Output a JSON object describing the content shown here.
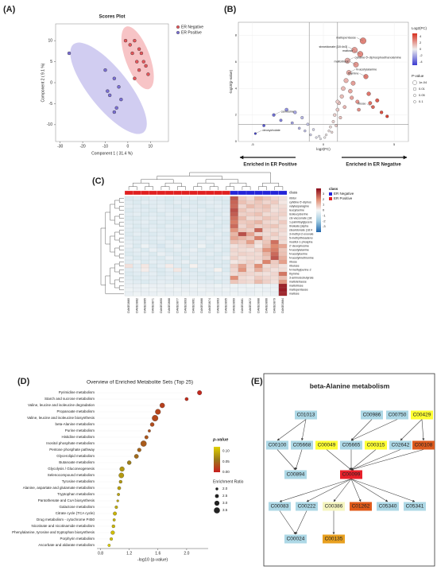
{
  "panel_labels": [
    "(A)",
    "(B)",
    "(C)",
    "(D)",
    "(E)"
  ],
  "chart_data": [
    {
      "type": "scatter",
      "title": "Scores Plot",
      "x_label": "Component 1 ( 31.4 %)",
      "y_label": "Component 2 ( 9.1 %)",
      "xlim": [
        -32,
        18
      ],
      "ylim": [
        -14,
        14
      ],
      "xticks": [
        -30,
        -20,
        -10,
        0,
        10
      ],
      "yticks": [
        -10,
        -5,
        0,
        5,
        10
      ],
      "series": [
        {
          "name": "ER Negative",
          "color": "#e8565b",
          "x": [
            -1,
            1,
            3,
            5,
            2,
            6,
            4,
            7,
            8,
            5,
            9,
            3
          ],
          "y": [
            10,
            9,
            10,
            8,
            7,
            7,
            5,
            5,
            4,
            3,
            2,
            1
          ]
        },
        {
          "name": "ER Positive",
          "color": "#7b6fd6",
          "x": [
            -26,
            -10,
            -6,
            -4,
            -8,
            -3,
            -5,
            -9,
            -6
          ],
          "y": [
            7,
            3,
            1,
            -1,
            -3,
            -4,
            -6,
            -2,
            -7
          ]
        }
      ]
    },
    {
      "type": "volcano",
      "x_label": "log2(FC)",
      "y_label": "-log10(p-value)",
      "xlim": [
        -6,
        6
      ],
      "ylim": [
        0,
        9
      ],
      "xticks": [
        -5,
        0,
        5
      ],
      "yticks": [
        0,
        2,
        4,
        6,
        8
      ],
      "cutoff_x": [
        -1,
        1
      ],
      "cutoff_y": 1.3,
      "x": [
        -4.8,
        -4.2,
        -3.5,
        -3.0,
        -2.6,
        -2.2,
        -2.0,
        -1.7,
        -1.5,
        -1.3,
        -1.1,
        -0.9,
        -0.7,
        -0.5,
        -0.3,
        -0.2,
        0.1,
        0.2,
        0.4,
        0.5,
        0.7,
        0.8,
        1.0,
        1.1,
        1.3,
        1.4,
        1.6,
        1.8,
        1.9,
        2.1,
        2.3,
        2.4,
        2.6,
        2.8,
        3.0,
        3.2,
        3.5,
        3.8,
        4.1,
        4.5,
        1.2,
        1.5,
        2.0,
        0.9,
        1.7,
        2.5,
        3.3,
        0.6,
        1.0,
        2.2
      ],
      "y": [
        0.6,
        1.2,
        2.0,
        1.6,
        2.4,
        1.4,
        2.2,
        1.0,
        1.8,
        0.8,
        1.3,
        0.5,
        0.9,
        0.3,
        0.4,
        0.2,
        0.3,
        0.5,
        0.8,
        1.1,
        1.5,
        2.0,
        2.4,
        2.9,
        3.4,
        4.0,
        4.6,
        5.2,
        3.8,
        4.4,
        5.8,
        3.0,
        6.6,
        7.6,
        4.9,
        3.6,
        2.6,
        3.1,
        2.2,
        1.9,
        1.8,
        2.6,
        3.3,
        1.2,
        6.1,
        2.4,
        2.9,
        0.7,
        3.0,
        6.9
      ],
      "annotations": [
        {
          "text": "maltopentaose",
          "x": 2.8,
          "y": 7.6
        },
        {
          "text": "stearidonate [18:4n3]",
          "x": 2.2,
          "y": 6.9
        },
        {
          "text": "maltose",
          "x": 2.6,
          "y": 6.6
        },
        {
          "text": "cytidine-5'-diphosphoethanolamine",
          "x": 1.7,
          "y": 6.1
        },
        {
          "text": "maltotriose",
          "x": 2.3,
          "y": 5.8
        },
        {
          "text": "N-acetylalanine",
          "x": 1.8,
          "y": 5.2
        },
        {
          "text": "thymine",
          "x": 3.0,
          "y": 4.9
        },
        {
          "text": "ribose",
          "x": 3.5,
          "y": 2.6
        },
        {
          "text": "carnosine",
          "x": -3.5,
          "y": 2.0
        },
        {
          "text": "deoxycholate",
          "x": -4.8,
          "y": 0.6
        }
      ],
      "color_label": "Log2(FC)",
      "color_lim": [
        -5,
        5
      ],
      "color_ticks": [
        4,
        2,
        0,
        -2,
        -4
      ],
      "colormap": [
        "#3b3bd1",
        "#eeeeee",
        "#d7301f"
      ],
      "size_label": "P-value",
      "size_ticks": [
        {
          "value": 0.0001,
          "label": "1e-04"
        },
        0.01,
        0.05,
        0.1
      ],
      "arrow_left": "Enriched in ER Positive",
      "arrow_right": "Enriched in ER Negative"
    },
    {
      "type": "heatmap",
      "rows": [
        "ribitol",
        "cytidine-5'-diphos",
        "valylasparagine",
        "leucylserine",
        "isoleucylserine",
        "cis-vaccenate (18:",
        "1-palmitoylglycero",
        "linoleate [alpha",
        "stearidonate (18:4",
        "3-methyl-2-oxovale",
        "5-methylthioadeno",
        "inositol-1-phospha",
        "2'-deoxyinosine",
        "N-acetylalanine",
        "N-acetylserine",
        "N-acetylmethionine",
        "ribose",
        "ribulose",
        "N-methylpurine-2",
        "thymine",
        "3-aminoisobutyrate",
        "maltotetraose",
        "maltotriose",
        "maltopentaose",
        "maltose"
      ],
      "columns": [
        "DAKE0880",
        "DAKE0882",
        "DAKE0865",
        "DAKE0871",
        "DAKE0890",
        "DAKE0868",
        "DAKE0877",
        "DAKE0893",
        "DAKE0861",
        "DAKE0886",
        "DAKE0874",
        "DAKE0863",
        "DAKE0895",
        "DAKE0869",
        "DAKE0881",
        "DAKE0872",
        "DAKE0888",
        "DAKE0866",
        "DAKE0879",
        "DAKE0884"
      ],
      "classes": [
        "ER Positive",
        "ER Positive",
        "ER Positive",
        "ER Positive",
        "ER Positive",
        "ER Positive",
        "ER Positive",
        "ER Positive",
        "ER Positive",
        "ER Positive",
        "ER Positive",
        "ER Positive",
        "ER Positive",
        "ER Negative",
        "ER Negative",
        "ER Negative",
        "ER Negative",
        "ER Negative",
        "ER Negative",
        "ER Negative"
      ],
      "class_label": "class",
      "class_legend": [
        {
          "name": "ER Negative",
          "color": "#2424d8"
        },
        {
          "name": "ER Positive",
          "color": "#e02020"
        }
      ],
      "color_lim": [
        -4,
        4
      ],
      "color_ticks": [
        3,
        2,
        1,
        0,
        -1,
        -2,
        -3
      ],
      "colormap": [
        "#2166ac",
        "#9ecae1",
        "#f7f7f7",
        "#e08a70",
        "#8b0a1a"
      ],
      "values": [
        [
          -0.6,
          -0.5,
          -0.6,
          -0.4,
          -0.5,
          -0.6,
          -0.5,
          -0.5,
          -0.4,
          -0.6,
          -0.5,
          -0.6,
          -0.5,
          2.8,
          0.8,
          0.5,
          1.2,
          0.9,
          0.6,
          0.4
        ],
        [
          -0.5,
          -0.6,
          -0.4,
          -0.5,
          -0.5,
          -0.6,
          -0.4,
          -0.5,
          -0.6,
          -0.5,
          -0.4,
          -0.5,
          -0.6,
          2.6,
          1.0,
          0.7,
          0.9,
          0.6,
          0.8,
          0.3
        ],
        [
          -0.4,
          -0.5,
          -0.6,
          -0.5,
          -0.4,
          -0.5,
          -0.6,
          -0.4,
          -0.5,
          -0.6,
          -0.5,
          -0.4,
          -0.5,
          2.5,
          0.6,
          1.1,
          0.8,
          1.0,
          0.5,
          0.5
        ],
        [
          -0.6,
          -0.5,
          -0.5,
          -0.6,
          -0.4,
          -0.5,
          -0.5,
          -0.6,
          -0.5,
          -0.4,
          -0.6,
          -0.5,
          -0.5,
          2.9,
          0.9,
          0.6,
          0.7,
          0.8,
          0.4,
          0.6
        ],
        [
          -0.5,
          -0.4,
          -0.6,
          -0.5,
          -0.6,
          -0.4,
          -0.5,
          -0.5,
          -0.6,
          -0.5,
          -0.5,
          -0.6,
          -0.4,
          2.7,
          0.7,
          0.8,
          1.0,
          0.5,
          0.6,
          0.7
        ],
        [
          -0.6,
          -0.6,
          -0.5,
          -0.4,
          -0.5,
          -0.5,
          -0.6,
          -0.4,
          -0.5,
          -0.5,
          -0.6,
          -0.4,
          -0.5,
          2.4,
          1.1,
          0.5,
          0.6,
          0.9,
          0.7,
          0.4
        ],
        [
          -0.5,
          -0.5,
          -0.4,
          -0.6,
          -0.5,
          -0.6,
          -0.5,
          -0.5,
          -0.4,
          -0.6,
          -0.5,
          -0.5,
          -0.6,
          2.2,
          0.8,
          0.9,
          1.2,
          0.6,
          0.5,
          0.8
        ],
        [
          -0.4,
          -0.6,
          -0.5,
          -0.5,
          -0.6,
          -0.4,
          -0.5,
          -0.6,
          -0.5,
          -0.5,
          -0.4,
          -0.6,
          -0.5,
          2.5,
          0.6,
          1.0,
          0.7,
          0.8,
          0.9,
          0.5
        ],
        [
          -0.5,
          -0.5,
          -0.6,
          -0.4,
          -0.5,
          -0.5,
          -0.6,
          -0.5,
          -0.4,
          -0.5,
          -0.6,
          -0.5,
          -0.4,
          1.8,
          0.9,
          0.7,
          2.6,
          0.6,
          0.5,
          0.6
        ],
        [
          -0.6,
          -0.4,
          -0.5,
          -0.6,
          -0.5,
          -0.5,
          -0.4,
          -0.5,
          -0.6,
          -0.5,
          -0.5,
          -0.4,
          -0.6,
          1.2,
          2.9,
          1.5,
          0.6,
          0.5,
          0.8,
          0.4
        ],
        [
          -0.5,
          -0.6,
          -0.5,
          -0.5,
          -0.4,
          -0.6,
          -0.5,
          -0.5,
          -0.5,
          -0.6,
          -0.4,
          -0.5,
          -0.5,
          1.5,
          1.2,
          0.9,
          2.2,
          0.7,
          0.5,
          0.6
        ],
        [
          -0.4,
          -0.5,
          -0.5,
          -0.6,
          -0.5,
          -0.4,
          -0.6,
          -0.5,
          -0.5,
          -0.4,
          -0.5,
          -0.6,
          -0.5,
          1.0,
          0.8,
          1.6,
          0.5,
          0.9,
          2.4,
          0.5
        ],
        [
          -0.3,
          -0.6,
          -0.2,
          -0.5,
          -0.7,
          -0.4,
          -0.3,
          -0.6,
          -0.5,
          -0.2,
          -0.6,
          -0.4,
          -0.5,
          0.4,
          0.6,
          0.8,
          0.3,
          1.1,
          2.0,
          1.5
        ],
        [
          -0.5,
          -0.4,
          -0.6,
          -0.3,
          -0.5,
          -0.6,
          -0.4,
          -0.5,
          -0.3,
          -0.6,
          -0.5,
          -0.4,
          -0.6,
          0.6,
          0.5,
          0.4,
          0.7,
          1.8,
          2.2,
          0.9
        ],
        [
          -0.6,
          -0.5,
          -0.4,
          -0.6,
          -0.3,
          -0.5,
          -0.6,
          -0.4,
          -0.5,
          -0.5,
          -0.4,
          -0.6,
          -0.5,
          0.5,
          0.7,
          0.6,
          0.5,
          1.2,
          2.5,
          1.0
        ],
        [
          -0.4,
          -0.6,
          -0.5,
          -0.5,
          -0.6,
          -0.3,
          -0.5,
          -0.6,
          -0.4,
          -0.5,
          -0.6,
          -0.5,
          -0.3,
          0.7,
          0.4,
          0.5,
          0.6,
          0.9,
          2.8,
          1.3
        ],
        [
          -0.5,
          -0.3,
          -0.6,
          -0.4,
          -0.5,
          -0.6,
          -0.5,
          -0.3,
          -0.6,
          -0.4,
          -0.5,
          -0.5,
          -0.6,
          0.3,
          0.5,
          0.7,
          0.4,
          2.1,
          0.8,
          1.6
        ],
        [
          0.4,
          -0.5,
          0.3,
          -0.6,
          -0.4,
          0.2,
          -0.5,
          -0.6,
          0.1,
          -0.5,
          -0.4,
          -0.6,
          -0.5,
          0.8,
          1.5,
          0.6,
          1.9,
          0.5,
          0.7,
          0.4
        ],
        [
          -0.5,
          -0.4,
          0.2,
          -0.5,
          -0.6,
          -0.4,
          0.3,
          -0.5,
          -0.6,
          -0.4,
          -0.5,
          0.1,
          -0.6,
          0.6,
          1.8,
          0.5,
          1.3,
          0.7,
          0.4,
          0.5
        ],
        [
          -0.6,
          -0.5,
          -0.5,
          -0.4,
          -0.6,
          -0.5,
          -0.5,
          -0.4,
          -0.5,
          -0.6,
          -0.5,
          -0.5,
          -0.4,
          0.5,
          0.7,
          0.6,
          0.5,
          0.4,
          0.6,
          2.3
        ],
        [
          -0.5,
          -0.6,
          -0.4,
          -0.5,
          -0.5,
          -0.4,
          -0.6,
          -0.5,
          -0.5,
          -0.5,
          -0.6,
          -0.4,
          -0.5,
          1.9,
          0.5,
          0.4,
          0.8,
          0.6,
          0.5,
          1.0
        ],
        [
          -0.4,
          -0.5,
          -0.6,
          -0.5,
          -0.4,
          -0.5,
          -0.5,
          -0.6,
          -0.4,
          -0.5,
          -0.5,
          -0.6,
          -0.5,
          0.9,
          0.6,
          0.5,
          1.1,
          0.7,
          0.4,
          1.7
        ],
        [
          -0.3,
          -0.3,
          -0.2,
          -0.3,
          -0.3,
          -0.2,
          -0.3,
          -0.3,
          -0.2,
          -0.3,
          -0.3,
          -0.2,
          -0.3,
          -0.2,
          -0.3,
          -0.2,
          -0.3,
          -0.2,
          -0.3,
          3.6
        ],
        [
          -0.2,
          -0.3,
          -0.3,
          -0.2,
          -0.3,
          -0.3,
          -0.2,
          -0.3,
          -0.3,
          -0.2,
          -0.3,
          -0.3,
          -0.2,
          -0.3,
          -0.2,
          -0.3,
          -0.2,
          -0.3,
          -0.2,
          3.7
        ],
        [
          -0.3,
          -0.2,
          -0.3,
          -0.3,
          -0.2,
          -0.3,
          -0.3,
          -0.2,
          -0.3,
          -0.3,
          -0.2,
          -0.3,
          -0.3,
          -0.2,
          -0.3,
          -0.3,
          -0.2,
          -0.2,
          -0.3,
          3.5
        ]
      ]
    },
    {
      "type": "bubble",
      "title": "Overview of Enriched Metabolite Sets (Top 25)",
      "x_label": "-log10 (p-value)",
      "categories": [
        "Pyrimidine metabolism",
        "Starch and sucrose metabolism",
        "Valine, leucine and isoleucine degradation",
        "Propanoate metabolism",
        "Valine, leucine and isoleucine biosynthesis",
        "beta-Alanine metabolism",
        "Purine metabolism",
        "Histidine metabolism",
        "Inositol phosphate metabolism",
        "Pentose phosphate pathway",
        "Glycerolipid metabolism",
        "Butanoate metabolism",
        "Glycolysis / Gluconeogenesis",
        "Selenocompound metabolism",
        "Tyrosine metabolism",
        "Alanine, aspartate and glutamate metabolism",
        "Tryptophan metabolism",
        "Pantothenate and CoA biosynthesis",
        "Galactose metabolism",
        "Citrate cycle (TCA cycle)",
        "Drug metabolism - cytochrome P450",
        "Nicotinate and nicotinamide metabolism",
        "Phenylalanine, tyrosine and tryptophan biosynthesis",
        "Porphyrin metabolism",
        "Ascorbate and aldarate metabolism"
      ],
      "values": [
        2.18,
        2.0,
        1.66,
        1.6,
        1.56,
        1.52,
        1.48,
        1.44,
        1.4,
        1.34,
        1.3,
        1.2,
        1.1,
        1.09,
        1.08,
        1.06,
        1.05,
        1.04,
        1.02,
        1.0,
        0.99,
        0.98,
        0.97,
        0.95,
        0.92
      ],
      "sizes": [
        2.8,
        2.3,
        3.0,
        3.2,
        3.5,
        2.6,
        2.0,
        2.4,
        3.4,
        2.5,
        2.7,
        2.6,
        2.9,
        3.1,
        2.2,
        2.3,
        2.0,
        1.8,
        2.1,
        2.4,
        2.0,
        2.2,
        2.5,
        2.1,
        2.0
      ],
      "xlim": [
        0.75,
        2.3
      ],
      "xticks": [
        0.8,
        1.2,
        1.6,
        {
          "value": 2,
          "label": "2.0"
        }
      ],
      "color_label": "p-value",
      "color_lim": [
        0,
        0.12
      ],
      "color_ticks": [
        {
          "value": 0.1,
          "label": "0.10"
        },
        0.05,
        {
          "value": 0,
          "label": "0.00"
        }
      ],
      "colormap": [
        "#c81e1e",
        "#9a7a1a",
        "#e0d000"
      ],
      "size_label": "Enrichment Ratio",
      "size_ticks": [
        {
          "value": 2,
          "label": "2.0"
        },
        2.5,
        {
          "value": 3,
          "label": "3.0"
        },
        3.5
      ]
    }
  ],
  "pathway": {
    "title": "beta-Alanine metabolism",
    "nodes": [
      {
        "label": "C01013",
        "color": "#add8e6"
      },
      {
        "label": "C00986",
        "color": "#add8e6"
      },
      {
        "label": "C00750",
        "color": "#add8e6"
      },
      {
        "label": "C00429",
        "color": "#ffff33"
      },
      {
        "label": "C00100",
        "color": "#add8e6"
      },
      {
        "label": "C05668",
        "color": "#add8e6"
      },
      {
        "label": "C00049",
        "color": "#ffff33"
      },
      {
        "label": "C05665",
        "color": "#add8e6"
      },
      {
        "label": "C00315",
        "color": "#ffff33"
      },
      {
        "label": "C02642",
        "color": "#add8e6"
      },
      {
        "label": "C00108",
        "color": "#dc5a1e"
      },
      {
        "label": "C00894",
        "color": "#add8e6"
      },
      {
        "label": "C00099",
        "color": "#e8202a"
      },
      {
        "label": "C00083",
        "color": "#add8e6"
      },
      {
        "label": "C00222",
        "color": "#add8e6"
      },
      {
        "label": "C00386",
        "color": "#f5f5c0"
      },
      {
        "label": "C01262",
        "color": "#e05a1a"
      },
      {
        "label": "C05340",
        "color": "#add8e6"
      },
      {
        "label": "C05341",
        "color": "#add8e6"
      },
      {
        "label": "C00024",
        "color": "#add8e6"
      },
      {
        "label": "C00135",
        "color": "#e8a020"
      }
    ]
  }
}
